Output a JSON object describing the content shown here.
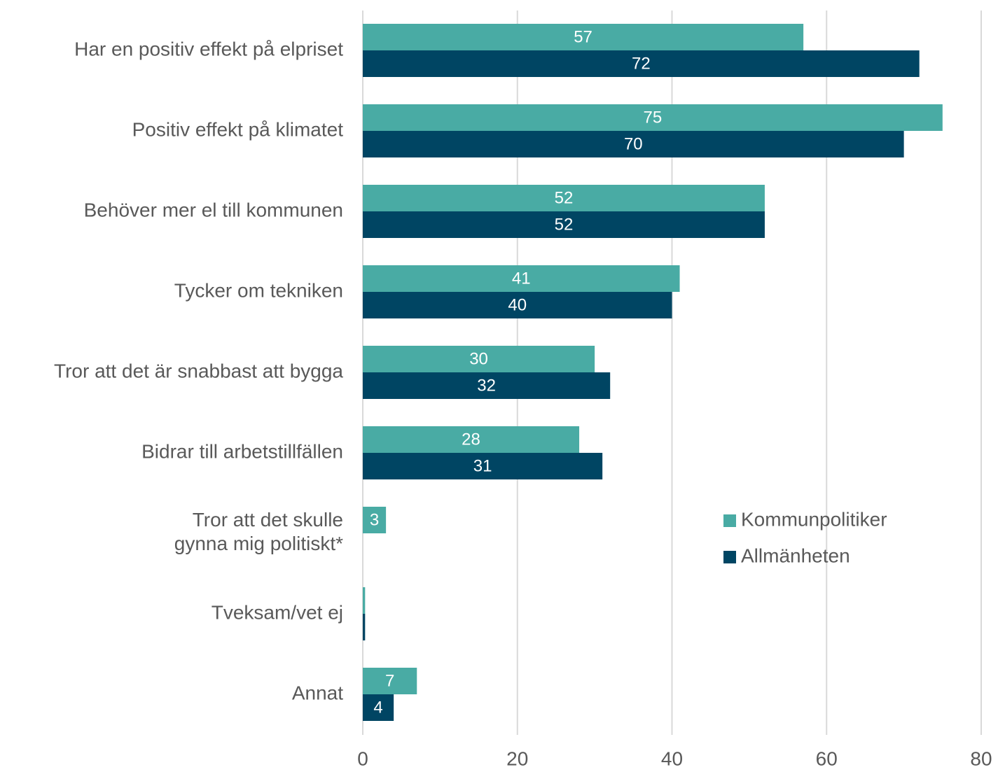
{
  "chart_data": {
    "type": "hbar",
    "categories": [
      "Har en positiv effekt på elpriset",
      "Positiv effekt på klimatet",
      "Behöver mer el till kommunen",
      "Tycker om tekniken",
      "Tror att det är snabbast att bygga",
      "Bidrar till arbetstillfällen",
      "Tror att det skulle\ngynna mig politiskt*",
      "Tveksam/vet ej",
      "Annat"
    ],
    "series": [
      {
        "name": "Kommunpolitiker",
        "color": "#49aba4",
        "values": [
          57,
          75,
          52,
          41,
          30,
          28,
          3,
          0.3,
          7
        ],
        "value_labels": [
          "57",
          "75",
          "52",
          "41",
          "30",
          "28",
          "3",
          null,
          "7"
        ]
      },
      {
        "name": "Allmänheten",
        "color": "#004563",
        "values": [
          72,
          70,
          52,
          40,
          32,
          31,
          null,
          0.3,
          4
        ],
        "value_labels": [
          "72",
          "70",
          "52",
          "40",
          "32",
          "31",
          null,
          null,
          "4"
        ]
      }
    ],
    "xlim": [
      0,
      80
    ],
    "xticks": [
      0,
      20,
      40,
      60,
      80
    ],
    "grid": true,
    "legend": "right"
  }
}
